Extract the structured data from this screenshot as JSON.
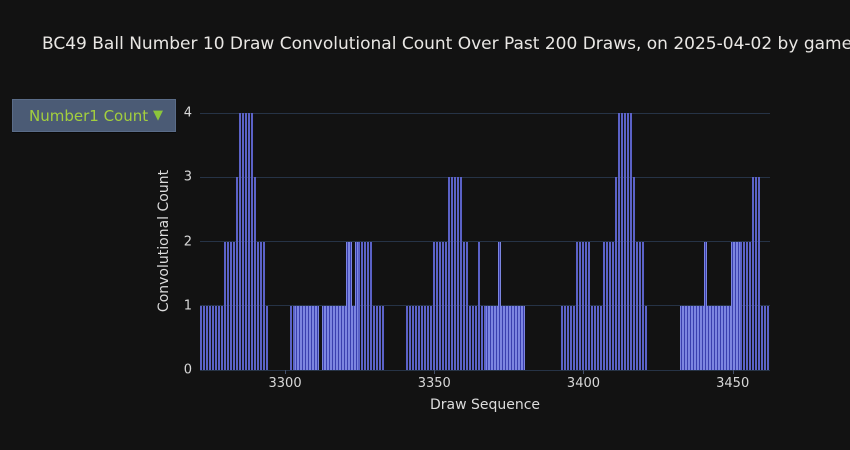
{
  "title": "BC49 Ball Number 10 Draw Convolutional Count Over Past 200 Draws, on 2025-04-02 by game",
  "dropdown": {
    "label": "Number1 Count",
    "caret": "▼",
    "bg_color": "#4b5b75",
    "text_color": "#a3cf3e"
  },
  "chart_data": {
    "type": "bar",
    "title": "BC49 Ball Number 10 Draw Convolutional Count Over Past 200 Draws, on 2025-04-02 by game",
    "xlabel": "Draw Sequence",
    "ylabel": "Convolutional Count",
    "x_start": 3272,
    "x_end": 3462,
    "xticks": [
      3300,
      3350,
      3400,
      3450
    ],
    "yticks": [
      0,
      1,
      2,
      3,
      4
    ],
    "ylim": [
      0,
      4
    ],
    "grid": true,
    "legend_position": "top-left dropdown",
    "bar_color": "#3a3fae",
    "bar_edge_color": "#7c85e0",
    "grid_color": "#263346",
    "values": [
      1,
      1,
      1,
      1,
      1,
      1,
      1,
      1,
      2,
      2,
      2,
      2,
      3,
      4,
      4,
      4,
      4,
      4,
      3,
      2,
      2,
      2,
      1,
      0,
      0,
      0,
      0,
      0,
      0,
      0,
      1,
      1,
      1,
      1,
      1,
      1,
      1,
      1,
      1,
      1,
      0,
      1,
      1,
      1,
      1,
      1,
      1,
      1,
      1,
      2,
      2,
      1,
      2,
      2,
      2,
      2,
      2,
      2,
      1,
      1,
      1,
      1,
      0,
      0,
      0,
      0,
      0,
      0,
      0,
      1,
      1,
      1,
      1,
      1,
      1,
      1,
      1,
      1,
      2,
      2,
      2,
      2,
      2,
      3,
      3,
      3,
      3,
      3,
      2,
      2,
      1,
      1,
      1,
      2,
      1,
      1,
      1,
      1,
      1,
      1,
      2,
      1,
      1,
      1,
      1,
      1,
      1,
      1,
      1,
      0,
      0,
      0,
      0,
      0,
      0,
      0,
      0,
      0,
      0,
      0,
      0,
      1,
      1,
      1,
      1,
      1,
      2,
      2,
      2,
      2,
      2,
      1,
      1,
      1,
      1,
      2,
      2,
      2,
      2,
      3,
      4,
      4,
      4,
      4,
      4,
      3,
      2,
      2,
      2,
      1,
      0,
      0,
      0,
      0,
      0,
      0,
      0,
      0,
      0,
      0,
      0,
      1,
      1,
      1,
      1,
      1,
      1,
      1,
      1,
      2,
      1,
      1,
      1,
      1,
      1,
      1,
      1,
      1,
      2,
      2,
      2,
      2,
      2,
      2,
      2,
      3,
      3,
      3,
      1,
      1,
      1
    ]
  }
}
